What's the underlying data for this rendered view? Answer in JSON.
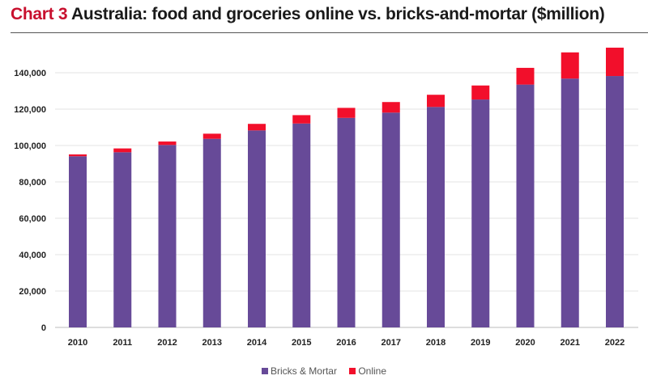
{
  "chart_data": {
    "type": "bar",
    "stacked": true,
    "title_lead": "Chart 3",
    "title": "Australia: food and groceries online vs. bricks-and-mortar ($million)",
    "xlabel": "",
    "ylabel": "",
    "ylim": [
      0,
      150000
    ],
    "yticks": [
      0,
      20000,
      40000,
      60000,
      80000,
      100000,
      120000,
      140000
    ],
    "ytick_labels": [
      "0",
      "20,000",
      "40,000",
      "60,000",
      "80,000",
      "100,000",
      "120,000",
      "140,000"
    ],
    "grid": true,
    "legend_position": "bottom",
    "categories": [
      "2010",
      "2011",
      "2012",
      "2013",
      "2014",
      "2015",
      "2016",
      "2017",
      "2018",
      "2019",
      "2020",
      "2021",
      "2022"
    ],
    "series": [
      {
        "name": "Bricks & Mortar",
        "color": "#674a98",
        "values": [
          94100,
          96300,
          100300,
          103700,
          108300,
          112100,
          115200,
          118100,
          121200,
          125300,
          133500,
          136800,
          138200
        ]
      },
      {
        "name": "Online",
        "color": "#f20f2b",
        "values": [
          1000,
          2100,
          1900,
          2800,
          3600,
          4600,
          5500,
          5800,
          6700,
          7700,
          9200,
          14400,
          15600
        ]
      }
    ],
    "title_color": "#c8102e"
  }
}
